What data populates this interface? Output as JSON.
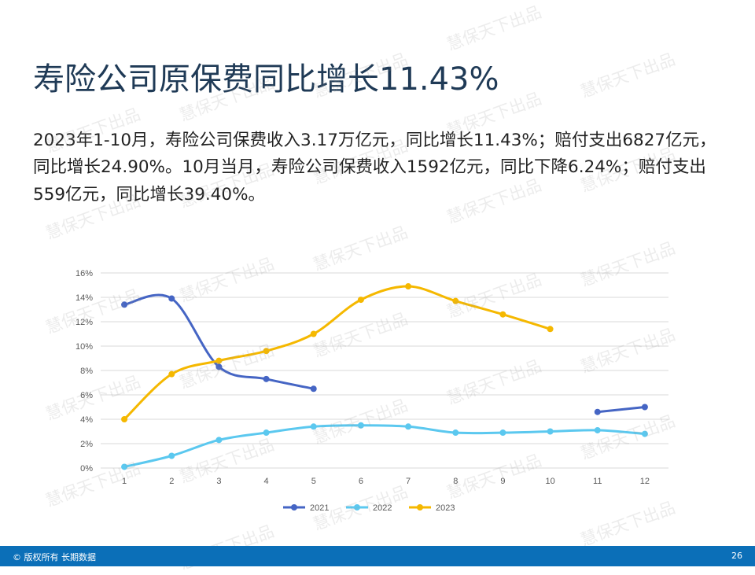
{
  "slide": {
    "title": "寿险公司原保费同比增长11.43%",
    "body": "2023年1-10月，寿险公司保费收入3.17万亿元，同比增长11.43%；赔付支出6827亿元，同比增长24.90%。10月当月，寿险公司保费收入1592亿元，同比下降6.24%；赔付支出559亿元，同比增长39.40%。"
  },
  "watermark": {
    "text": "慧保天下出品"
  },
  "footer": {
    "copyright": "© 版权所有 长期数据",
    "page_number": "26"
  },
  "chart_data": {
    "type": "line",
    "title": "",
    "xlabel": "",
    "ylabel": "",
    "categories": [
      "1",
      "2",
      "3",
      "4",
      "5",
      "6",
      "7",
      "8",
      "9",
      "10",
      "11",
      "12"
    ],
    "y_ticks": [
      "0%",
      "2%",
      "4%",
      "6%",
      "8%",
      "10%",
      "12%",
      "14%",
      "16%"
    ],
    "ylim": [
      0,
      16
    ],
    "grid": true,
    "legend_position": "bottom",
    "series": [
      {
        "name": "2021",
        "color": "#4565c4",
        "values": [
          13.4,
          13.9,
          8.3,
          7.3,
          6.5,
          null,
          null,
          null,
          null,
          null,
          4.6,
          5.0
        ]
      },
      {
        "name": "2022",
        "color": "#5bc8ef",
        "values": [
          0.1,
          1.0,
          2.3,
          2.9,
          3.4,
          3.5,
          3.4,
          2.9,
          2.9,
          3.0,
          3.1,
          2.8
        ]
      },
      {
        "name": "2023",
        "color": "#f5b800",
        "values": [
          4.0,
          7.7,
          8.8,
          9.6,
          11.0,
          13.8,
          14.9,
          13.7,
          12.6,
          11.4,
          null,
          null
        ]
      }
    ]
  }
}
